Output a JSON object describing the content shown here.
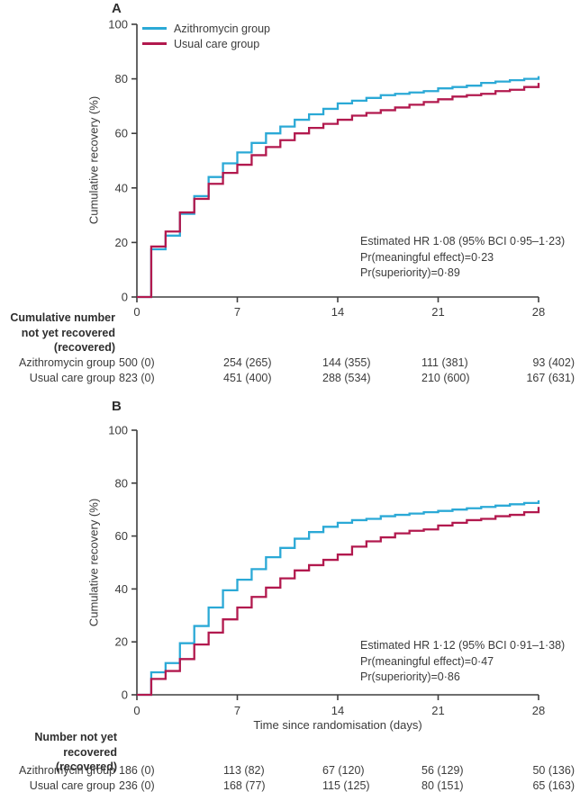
{
  "colors": {
    "azithromycin": "#2BA9D6",
    "usual_care": "#B2194E",
    "axis": "#3F3F3F",
    "text": "#3B3B3B"
  },
  "chart_data": [
    {
      "type": "line",
      "subtype": "step-post",
      "title": "A",
      "ylabel": "Cumulative recovery (%)",
      "xlabel": "",
      "xlim": [
        0,
        28
      ],
      "ylim": [
        0,
        100
      ],
      "xticks": [
        0,
        7,
        14,
        21,
        28
      ],
      "yticks": [
        0,
        20,
        40,
        60,
        80,
        100
      ],
      "grid": false,
      "legend_position": "top-left",
      "x": [
        0,
        1,
        2,
        3,
        4,
        5,
        6,
        7,
        8,
        9,
        10,
        11,
        12,
        13,
        14,
        15,
        16,
        17,
        18,
        19,
        20,
        21,
        22,
        23,
        24,
        25,
        26,
        27,
        28
      ],
      "series": [
        {
          "name": "Azithromycin group",
          "color_key": "azithromycin",
          "values": [
            0,
            17.5,
            22.5,
            30.5,
            37,
            44,
            49,
            53,
            56.5,
            60,
            62.5,
            65,
            67,
            69,
            71,
            72,
            73,
            74,
            74.5,
            75,
            75.5,
            76.5,
            77,
            77.5,
            78.5,
            79,
            79.5,
            80,
            81
          ]
        },
        {
          "name": "Usual care group",
          "color_key": "usual_care",
          "values": [
            0,
            18.5,
            24,
            31,
            36,
            41.5,
            45.5,
            48.5,
            52,
            55,
            57.5,
            60,
            62,
            63.5,
            65,
            66.5,
            67.5,
            68.5,
            69.5,
            70.5,
            71.5,
            72.5,
            73.5,
            74,
            74.5,
            75.5,
            76,
            77,
            78.5
          ]
        }
      ],
      "annotation": [
        "Estimated HR 1·08 (95% BCI 0·95–1·23)",
        "Pr(meaningful effect)=0·23",
        "Pr(superiority)=0·89"
      ]
    },
    {
      "type": "line",
      "subtype": "step-post",
      "title": "B",
      "ylabel": "Cumulative recovery (%)",
      "xlabel": "Time since randomisation (days)",
      "xlim": [
        0,
        28
      ],
      "ylim": [
        0,
        100
      ],
      "xticks": [
        0,
        7,
        14,
        21,
        28
      ],
      "yticks": [
        0,
        20,
        40,
        60,
        80,
        100
      ],
      "grid": false,
      "legend_position": "none",
      "x": [
        0,
        1,
        2,
        3,
        4,
        5,
        6,
        7,
        8,
        9,
        10,
        11,
        12,
        13,
        14,
        15,
        16,
        17,
        18,
        19,
        20,
        21,
        22,
        23,
        24,
        25,
        26,
        27,
        28
      ],
      "series": [
        {
          "name": "Azithromycin group",
          "color_key": "azithromycin",
          "values": [
            0,
            8.5,
            12,
            19.5,
            26,
            33,
            39.5,
            43.5,
            47.5,
            52,
            55.5,
            59,
            61.5,
            63.5,
            65,
            66,
            66.5,
            67.5,
            68,
            68.5,
            69,
            69.5,
            70,
            70.5,
            71,
            71.5,
            72,
            72.5,
            73.5
          ]
        },
        {
          "name": "Usual care group",
          "color_key": "usual_care",
          "values": [
            0,
            6,
            9,
            13.5,
            19,
            23.5,
            28.5,
            33,
            37,
            40.5,
            44,
            47,
            49,
            51,
            53,
            56,
            58,
            59.5,
            61,
            62,
            62.5,
            64,
            65,
            66,
            66.5,
            67.5,
            68,
            69,
            71
          ]
        }
      ],
      "annotation": [
        "Estimated HR 1·12 (95% BCI 0·91–1·38)",
        "Pr(meaningful effect)=0·47",
        "Pr(superiority)=0·86"
      ]
    }
  ],
  "tables": [
    {
      "header_lines": [
        "Cumulative number",
        "not yet recovered",
        "(recovered)"
      ],
      "columns_days": [
        0,
        7,
        14,
        21,
        28
      ],
      "rows": [
        {
          "label": "Azithromycin group",
          "values": [
            "500 (0)",
            "254 (265)",
            "144 (355)",
            "111 (381)",
            "93 (402)"
          ]
        },
        {
          "label": "Usual care group",
          "values": [
            "823 (0)",
            "451 (400)",
            "288 (534)",
            "210 (600)",
            "167 (631)"
          ]
        }
      ]
    },
    {
      "header_lines": [
        "Number not yet",
        "recovered (recovered)"
      ],
      "columns_days": [
        0,
        7,
        14,
        21,
        28
      ],
      "rows": [
        {
          "label": "Azithromycin group",
          "values": [
            "186 (0)",
            "113 (82)",
            "67 (120)",
            "56 (129)",
            "50 (136)"
          ]
        },
        {
          "label": "Usual care group",
          "values": [
            "236 (0)",
            "168 (77)",
            "115 (125)",
            "80 (151)",
            "65 (163)"
          ]
        }
      ]
    }
  ]
}
